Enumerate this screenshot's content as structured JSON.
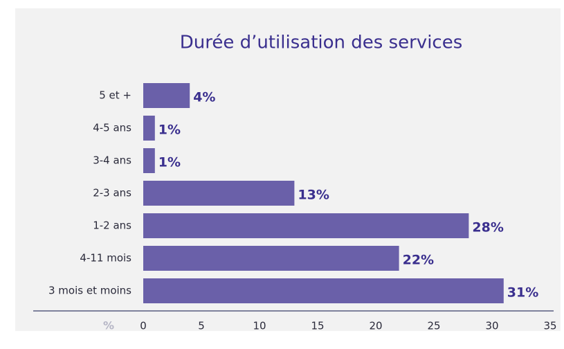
{
  "chart_data": {
    "type": "hbar",
    "title": "Durée d’utilisation des services",
    "categories": [
      "5 et +",
      "4-5 ans",
      "3-4 ans",
      "2-3 ans",
      "1-2 ans",
      "4-11 mois",
      "3 mois et moins"
    ],
    "values": [
      4,
      1,
      1,
      13,
      28,
      22,
      31
    ],
    "value_labels": [
      "4%",
      "1%",
      "1%",
      "13%",
      "28%",
      "22%",
      "31%"
    ],
    "color": "#6a60a9",
    "x_label": "%",
    "xlim": [
      0,
      35
    ],
    "xticks": [
      0,
      5,
      10,
      15,
      20,
      25,
      30,
      35
    ]
  }
}
